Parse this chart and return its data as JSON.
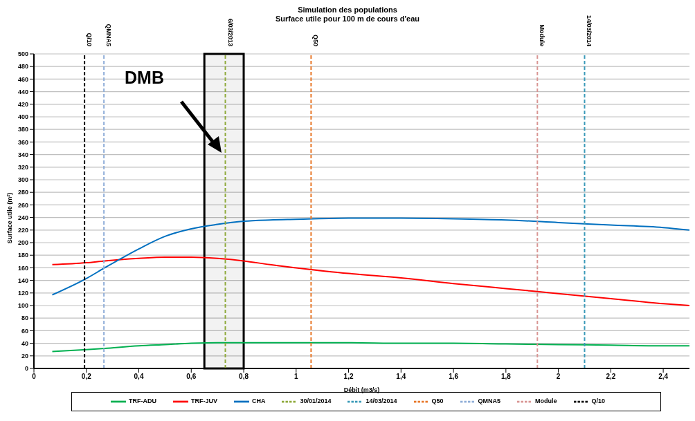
{
  "chart_data": {
    "type": "line",
    "title": "Simulation des populations",
    "subtitle": "Surface utile pour 100 m de cours d'eau",
    "xlabel": "Débit (m3/s)",
    "ylabel": "Surface utile (m²)",
    "x": [
      0.07,
      0.2,
      0.27,
      0.4,
      0.5,
      0.6,
      0.7,
      0.8,
      0.9,
      1.0,
      1.2,
      1.4,
      1.6,
      1.8,
      2.0,
      2.2,
      2.4,
      2.5
    ],
    "series": [
      {
        "name": "TRF-ADU",
        "color": "#00b050",
        "line_style": "solid",
        "values": [
          27,
          30,
          32,
          36,
          38,
          40,
          41,
          41,
          41,
          41,
          41,
          40,
          40,
          39,
          38,
          37,
          36,
          36
        ]
      },
      {
        "name": "TRF-JUV",
        "color": "#ff0000",
        "line_style": "solid",
        "values": [
          165,
          168,
          171,
          175,
          177,
          177,
          175,
          171,
          165,
          160,
          151,
          144,
          135,
          127,
          119,
          111,
          103,
          100
        ]
      },
      {
        "name": "CHA",
        "color": "#0070c0",
        "line_style": "solid",
        "values": [
          117,
          143,
          160,
          190,
          210,
          222,
          229,
          234,
          236,
          237,
          239,
          239,
          238,
          236,
          232,
          228,
          224,
          220
        ]
      },
      {
        "name": "30/01/2014",
        "color": "#8faa3c",
        "line_style": "dashed",
        "x": [
          0.73,
          0.73
        ],
        "values": [
          0,
          500
        ]
      },
      {
        "name": "14/03/2014",
        "color": "#3a9ab8",
        "line_style": "dashed",
        "x": [
          2.1,
          2.1
        ],
        "values": [
          0,
          500
        ]
      },
      {
        "name": "Q50",
        "color": "#e8782a",
        "line_style": "dashed",
        "x": [
          1.057,
          1.057
        ],
        "values": [
          0,
          500
        ]
      },
      {
        "name": "QMNA5",
        "color": "#8faed8",
        "line_style": "dashed",
        "x": [
          0.267,
          0.267
        ],
        "values": [
          0,
          500
        ]
      },
      {
        "name": "Module",
        "color": "#d99694",
        "line_style": "dashed",
        "x": [
          1.92,
          1.92
        ],
        "values": [
          0,
          500
        ]
      },
      {
        "name": "Q/10",
        "color": "#000000",
        "line_style": "dashed",
        "x": [
          0.193,
          0.193
        ],
        "values": [
          0,
          500
        ]
      }
    ],
    "xlim": [
      0,
      2.5
    ],
    "xticks": [
      0,
      {
        "value": 0.2,
        "label": "0,2"
      },
      {
        "value": 0.4,
        "label": "0,4"
      },
      {
        "value": 0.6,
        "label": "0,6"
      },
      {
        "value": 0.8,
        "label": "0,8"
      },
      1,
      {
        "value": 1.2,
        "label": "1,2"
      },
      {
        "value": 1.4,
        "label": "1,4"
      },
      {
        "value": 1.6,
        "label": "1,6"
      },
      {
        "value": 1.8,
        "label": "1,8"
      },
      2,
      {
        "value": 2.2,
        "label": "2,2"
      },
      {
        "value": 2.4,
        "label": "2,4"
      }
    ],
    "ylim": [
      0,
      500
    ],
    "yticks": [
      0,
      20,
      40,
      60,
      80,
      100,
      120,
      140,
      160,
      180,
      200,
      220,
      240,
      260,
      280,
      300,
      320,
      340,
      360,
      380,
      400,
      420,
      440,
      460,
      480,
      500
    ],
    "bands": [
      {
        "axis": "x",
        "from": 0.65,
        "to": 0.8,
        "color": "#000000"
      }
    ],
    "annotations": [
      "DMB",
      {
        "text": "Q/10",
        "x": 0.193,
        "y": 500
      },
      {
        "text": "QMNA5",
        "x": 0.267,
        "y": 500
      },
      {
        "text": "6/03/2013",
        "x": 0.73,
        "y": 500
      },
      {
        "text": "Q50",
        "x": 1.057,
        "y": 500
      },
      {
        "text": "Module",
        "x": 1.92,
        "y": 500
      },
      {
        "text": "14/03/2014",
        "x": 2.1,
        "y": 500
      }
    ],
    "grid": "y",
    "legend": "bottom",
    "marker": "none"
  }
}
